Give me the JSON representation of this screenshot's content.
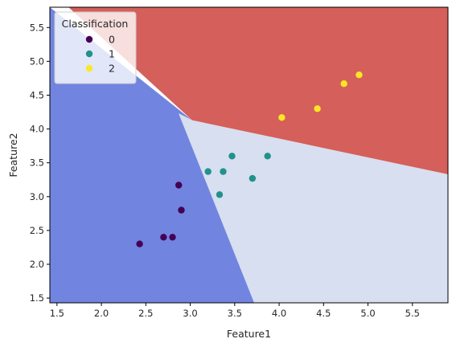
{
  "chart_data": {
    "type": "scatter",
    "title": "",
    "xlabel": "Feature1",
    "ylabel": "Feature2",
    "xlim": [
      1.42,
      5.9
    ],
    "ylim": [
      1.43,
      5.8
    ],
    "xticks": [
      "1.5",
      "2.0",
      "2.5",
      "3.0",
      "3.5",
      "4.0",
      "4.5",
      "5.0",
      "5.5"
    ],
    "yticks": [
      "1.5",
      "2.0",
      "2.5",
      "3.0",
      "3.5",
      "4.0",
      "4.5",
      "5.0",
      "5.5"
    ],
    "grid": false,
    "legend": {
      "title": "Classification",
      "placement": "top-left",
      "entries": [
        "0",
        "1",
        "2"
      ]
    },
    "colors": {
      "class_0_point": "#440154",
      "class_1_point": "#21918c",
      "class_2_point": "#fde725",
      "region_0": "#7184e0",
      "region_1": "#d7dff0",
      "region_2": "#d55f5a"
    },
    "decision_regions": [
      {
        "class": "0",
        "polygon": [
          [
            1.42,
            1.43
          ],
          [
            3.72,
            1.43
          ],
          [
            2.87,
            4.23
          ],
          [
            3.02,
            4.13
          ],
          [
            1.42,
            5.8
          ]
        ]
      },
      {
        "class": "1",
        "polygon": [
          [
            3.72,
            1.43
          ],
          [
            5.9,
            1.43
          ],
          [
            5.9,
            3.33
          ],
          [
            3.02,
            4.13
          ],
          [
            2.87,
            4.23
          ]
        ]
      },
      {
        "class": "2",
        "polygon": [
          [
            1.63,
            5.8
          ],
          [
            5.9,
            5.8
          ],
          [
            5.9,
            3.33
          ],
          [
            3.02,
            4.13
          ]
        ]
      }
    ],
    "series": [
      {
        "name": "0",
        "class": 0,
        "x": [
          2.43,
          2.7,
          2.8,
          2.87,
          2.9
        ],
        "y": [
          2.3,
          2.4,
          2.4,
          3.17,
          2.8
        ]
      },
      {
        "name": "1",
        "class": 1,
        "x": [
          3.2,
          3.33,
          3.37,
          3.47,
          3.7,
          3.87
        ],
        "y": [
          3.37,
          3.03,
          3.37,
          3.6,
          3.27,
          3.6
        ]
      },
      {
        "name": "2",
        "class": 2,
        "x": [
          4.03,
          4.43,
          4.73,
          4.9
        ],
        "y": [
          4.17,
          4.3,
          4.67,
          4.8
        ]
      }
    ]
  }
}
